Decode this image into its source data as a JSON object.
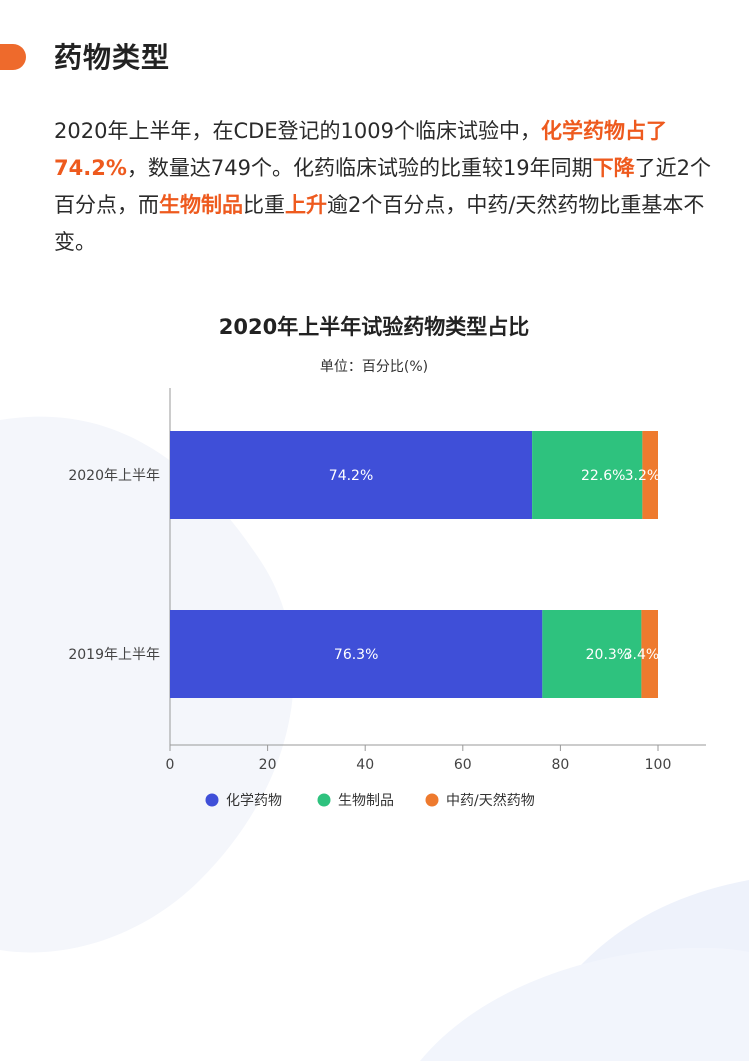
{
  "section": {
    "title": "药物类型"
  },
  "paragraph": [
    {
      "text": "2020年上半年，在CDE登记的1009个临床试验中，",
      "hl": false
    },
    {
      "text": "化学药物占了74.2%",
      "hl": true
    },
    {
      "text": "，数量达749个。化药临床试验的比重较19年同期",
      "hl": false
    },
    {
      "text": "下降",
      "hl": true
    },
    {
      "text": "了近2个百分点，而",
      "hl": false
    },
    {
      "text": "生物制品",
      "hl": true
    },
    {
      "text": "比重",
      "hl": false
    },
    {
      "text": "上升",
      "hl": true
    },
    {
      "text": "逾2个百分点，中药/天然药物比重基本不变。",
      "hl": false
    }
  ],
  "colors": {
    "accent": "#ee6a2c",
    "highlight": "#ee5a1e"
  },
  "chart_data": {
    "type": "bar",
    "orientation": "horizontal",
    "stacked": true,
    "title": "2020年上半年试验药物类型占比",
    "subtitle": "单位：百分比(%)",
    "categories": [
      "2020年上半年",
      "2019年上半年"
    ],
    "series": [
      {
        "name": "化学药物",
        "color": "#3f4fd8",
        "values": [
          74.2,
          76.3
        ],
        "labels": [
          "74.2%",
          "76.3%"
        ]
      },
      {
        "name": "生物制品",
        "color": "#2ec27e",
        "values": [
          22.6,
          20.3
        ],
        "labels": [
          "22.6%",
          "20.3%"
        ]
      },
      {
        "name": "中药/天然药物",
        "color": "#ee7a2e",
        "values": [
          3.2,
          3.4
        ],
        "labels": [
          "3.2%",
          "3.4%"
        ]
      }
    ],
    "xlim": [
      0,
      100
    ],
    "xticks": [
      "0",
      "20",
      "40",
      "60",
      "80",
      "100"
    ],
    "grid": false,
    "legend": "bottom"
  }
}
